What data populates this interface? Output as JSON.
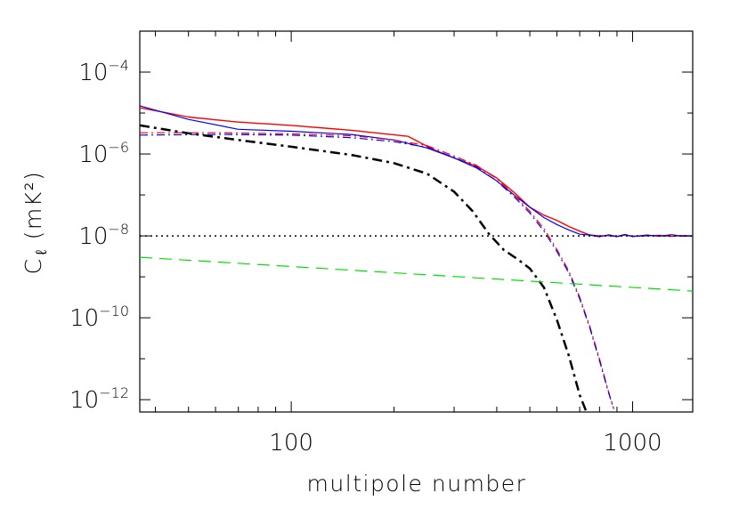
{
  "chart_data": {
    "type": "line",
    "xlabel": "multipole number",
    "ylabel": "C",
    "ylabel_subscript": "ℓ",
    "ylabel_units": "(mK²)",
    "xscale": "log",
    "yscale": "log",
    "xlim": [
      36,
      1500
    ],
    "ylim": [
      5e-13,
      0.001
    ],
    "x_ticks": [
      {
        "value": 100,
        "label": "100"
      },
      {
        "value": 1000,
        "label": "1000"
      }
    ],
    "y_ticks": [
      {
        "value": 0.0001,
        "base": "10",
        "exp": "−4"
      },
      {
        "value": 1e-06,
        "base": "10",
        "exp": "−6"
      },
      {
        "value": 1e-08,
        "base": "10",
        "exp": "−8"
      },
      {
        "value": 1e-10,
        "base": "10",
        "exp": "−10"
      },
      {
        "value": 1e-12,
        "base": "10",
        "exp": "−12"
      }
    ],
    "grid": false,
    "legend": "none",
    "series": [
      {
        "color": "#ff0000",
        "style": "solid",
        "width": 1.4,
        "points": [
          [
            36,
            1.35e-05
          ],
          [
            50,
            8e-06
          ],
          [
            70,
            6e-06
          ],
          [
            100,
            5e-06
          ],
          [
            150,
            3.8e-06
          ],
          [
            220,
            2.7e-06
          ],
          [
            260,
            1.3e-06
          ],
          [
            300,
            8e-07
          ],
          [
            350,
            5e-07
          ],
          [
            400,
            2.6e-07
          ],
          [
            450,
            1.15e-07
          ],
          [
            500,
            5e-08
          ],
          [
            550,
            3.2e-08
          ],
          [
            600,
            2.4e-08
          ],
          [
            650,
            1.7e-08
          ],
          [
            700,
            1.3e-08
          ],
          [
            750,
            1.05e-08
          ],
          [
            800,
            1e-08
          ],
          [
            850,
            1.02e-08
          ],
          [
            900,
            9.6e-09
          ],
          [
            950,
            1.05e-08
          ],
          [
            1000,
            9.8e-09
          ],
          [
            1100,
            1e-08
          ],
          [
            1200,
            1.03e-08
          ],
          [
            1300,
            9.7e-09
          ],
          [
            1400,
            1.02e-08
          ],
          [
            1500,
            1e-08
          ]
        ]
      },
      {
        "color": "#0000ff",
        "style": "solid",
        "width": 1.2,
        "points": [
          [
            36,
            1.5e-05
          ],
          [
            50,
            7e-06
          ],
          [
            70,
            4e-06
          ],
          [
            100,
            3.6e-06
          ],
          [
            150,
            3e-06
          ],
          [
            200,
            2.2e-06
          ],
          [
            250,
            1.4e-06
          ],
          [
            300,
            8e-07
          ],
          [
            350,
            4.5e-07
          ],
          [
            400,
            2.2e-07
          ],
          [
            450,
            1e-07
          ],
          [
            500,
            5e-08
          ],
          [
            550,
            2.8e-08
          ],
          [
            600,
            1.9e-08
          ],
          [
            650,
            1.4e-08
          ],
          [
            700,
            1.1e-08
          ],
          [
            750,
            1.05e-08
          ],
          [
            800,
            9.5e-09
          ],
          [
            850,
            1.06e-08
          ],
          [
            900,
            9.7e-09
          ],
          [
            950,
            1.08e-08
          ],
          [
            1000,
            9.6e-09
          ],
          [
            1100,
            1.05e-08
          ],
          [
            1200,
            9.8e-09
          ],
          [
            1300,
            1.07e-08
          ],
          [
            1400,
            9.8e-09
          ],
          [
            1500,
            1e-08
          ]
        ]
      },
      {
        "color": "#ff0000",
        "style": "dash-dot",
        "width": 1.2,
        "points": [
          [
            36,
            3.3e-06
          ],
          [
            60,
            3.3e-06
          ],
          [
            100,
            3.1e-06
          ],
          [
            150,
            2.8e-06
          ],
          [
            200,
            2.2e-06
          ],
          [
            250,
            1.6e-06
          ],
          [
            300,
            9e-07
          ],
          [
            350,
            5.2e-07
          ],
          [
            400,
            2.5e-07
          ],
          [
            450,
            1e-07
          ],
          [
            500,
            4e-08
          ],
          [
            550,
            1.5e-08
          ],
          [
            600,
            4.7e-09
          ],
          [
            650,
            1.4e-09
          ],
          [
            700,
            3.2e-10
          ],
          [
            750,
            6e-11
          ],
          [
            800,
            1e-11
          ],
          [
            850,
            1.6e-12
          ],
          [
            880,
            6e-13
          ]
        ]
      },
      {
        "color": "#0000ff",
        "style": "dash-dot",
        "width": 1.2,
        "points": [
          [
            36,
            2.9e-06
          ],
          [
            60,
            3e-06
          ],
          [
            100,
            2.9e-06
          ],
          [
            150,
            2.5e-06
          ],
          [
            200,
            2e-06
          ],
          [
            250,
            1.45e-06
          ],
          [
            300,
            8.3e-07
          ],
          [
            350,
            4.7e-07
          ],
          [
            400,
            2.2e-07
          ],
          [
            450,
            9e-08
          ],
          [
            500,
            3.6e-08
          ],
          [
            550,
            1.3e-08
          ],
          [
            600,
            4.2e-09
          ],
          [
            650,
            1.25e-09
          ],
          [
            700,
            2.9e-10
          ],
          [
            750,
            5.5e-11
          ],
          [
            800,
            9e-12
          ],
          [
            850,
            1.5e-12
          ],
          [
            880,
            6e-13
          ]
        ]
      },
      {
        "color": "#000000",
        "style": "dash-dot-thick",
        "width": 2.5,
        "points": [
          [
            36,
            5e-06
          ],
          [
            50,
            3.2e-06
          ],
          [
            70,
            2.2e-06
          ],
          [
            100,
            1.5e-06
          ],
          [
            150,
            9.5e-07
          ],
          [
            200,
            6e-07
          ],
          [
            250,
            3.3e-07
          ],
          [
            300,
            1.2e-07
          ],
          [
            340,
            4e-08
          ],
          [
            380,
            1.1e-08
          ],
          [
            420,
            4.5e-09
          ],
          [
            460,
            2.7e-09
          ],
          [
            500,
            1.6e-09
          ],
          [
            550,
            5.5e-10
          ],
          [
            600,
            9e-11
          ],
          [
            650,
            1.2e-11
          ],
          [
            700,
            1.3e-12
          ],
          [
            740,
            4e-13
          ]
        ]
      },
      {
        "color": "#000000",
        "style": "dotted",
        "width": 1.5,
        "points": [
          [
            36,
            1e-08
          ],
          [
            1500,
            1e-08
          ]
        ]
      },
      {
        "color": "#00e000",
        "style": "dashed",
        "width": 1.2,
        "points": [
          [
            36,
            3e-09
          ],
          [
            1500,
            4.5e-10
          ]
        ]
      }
    ]
  }
}
